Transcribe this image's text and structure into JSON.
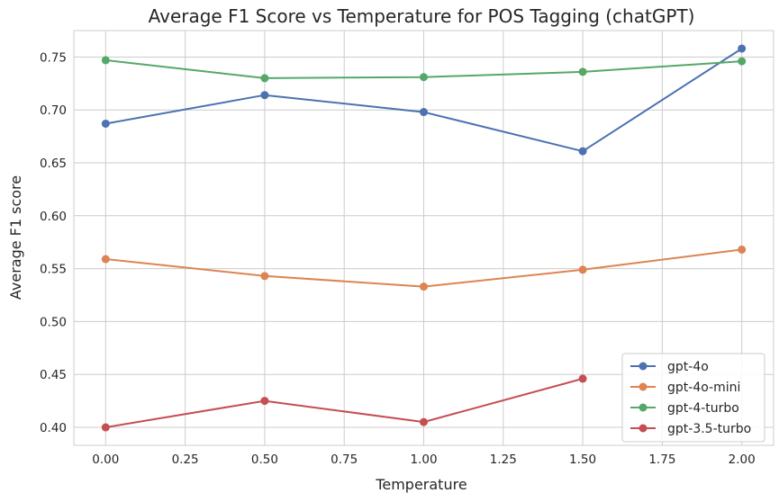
{
  "chart_data": {
    "type": "line",
    "title": "Average F1 Score vs Temperature for POS Tagging (chatGPT)",
    "xlabel": "Temperature",
    "ylabel": "Average F1 score",
    "xlim": [
      -0.1,
      2.1
    ],
    "ylim": [
      0.383,
      0.775
    ],
    "xticks": [
      "0.00",
      "0.25",
      "0.50",
      "0.75",
      "1.00",
      "1.25",
      "1.50",
      "1.75",
      "2.00"
    ],
    "yticks": [
      "0.40",
      "0.45",
      "0.50",
      "0.55",
      "0.60",
      "0.65",
      "0.70",
      "0.75"
    ],
    "grid": true,
    "legend_position": "lower-right",
    "series": [
      {
        "name": "gpt-4o",
        "color": "#4c72b0",
        "x": [
          0.0,
          0.5,
          1.0,
          1.5,
          2.0
        ],
        "y": [
          0.687,
          0.714,
          0.698,
          0.661,
          0.758
        ]
      },
      {
        "name": "gpt-4o-mini",
        "color": "#dd8452",
        "x": [
          0.0,
          0.5,
          1.0,
          1.5,
          2.0
        ],
        "y": [
          0.559,
          0.543,
          0.533,
          0.549,
          0.568
        ]
      },
      {
        "name": "gpt-4-turbo",
        "color": "#55a868",
        "x": [
          0.0,
          0.5,
          1.0,
          1.5,
          2.0
        ],
        "y": [
          0.747,
          0.73,
          0.731,
          0.736,
          0.746
        ]
      },
      {
        "name": "gpt-3.5-turbo",
        "color": "#c44e52",
        "x": [
          0.0,
          0.5,
          1.0,
          1.5
        ],
        "y": [
          0.4,
          0.425,
          0.405,
          0.446
        ]
      }
    ]
  }
}
